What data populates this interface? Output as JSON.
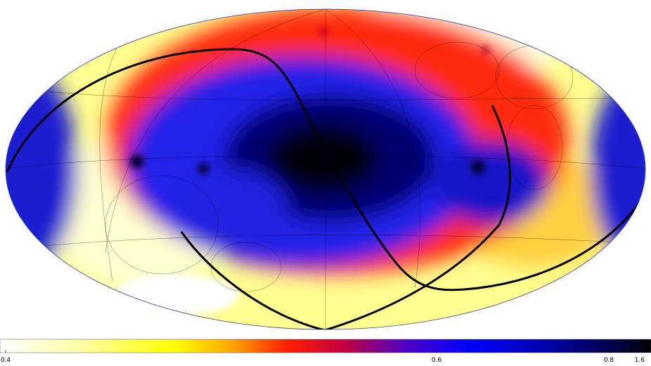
{
  "colorbar": {
    "ticks": [
      0.4,
      0.6,
      0.8,
      1.6
    ]
  }
}
